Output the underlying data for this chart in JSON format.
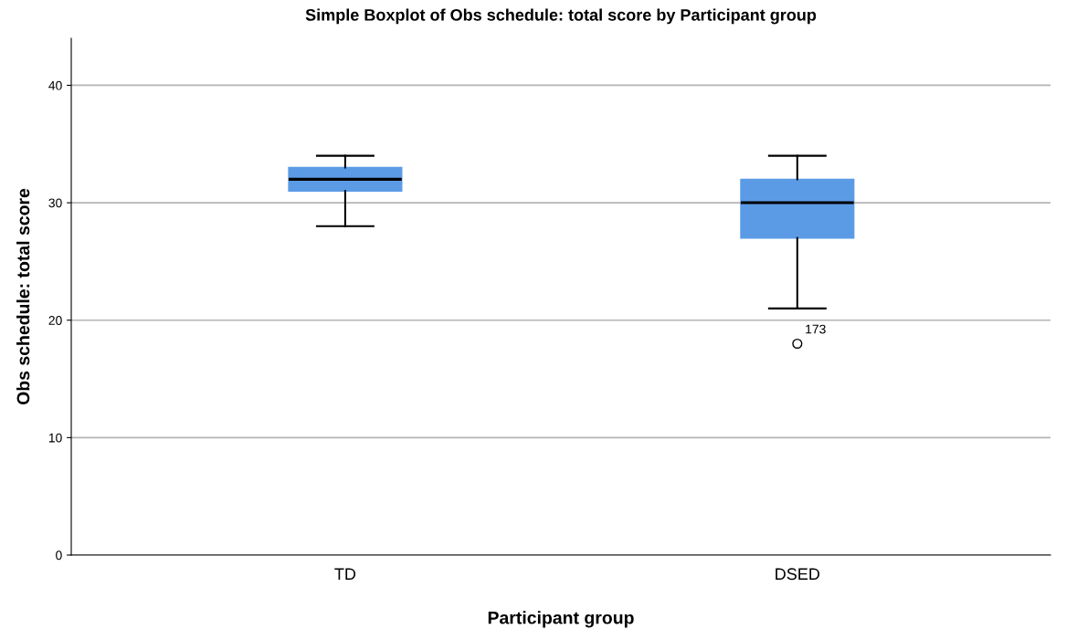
{
  "chart_data": {
    "type": "box",
    "title": "Simple Boxplot of Obs schedule: total score by Participant group",
    "xlabel": "Participant group",
    "ylabel": "Obs schedule: total score",
    "categories": [
      "TD",
      "DSED"
    ],
    "boxes": [
      {
        "low": 28,
        "q1": 31,
        "median": 32,
        "q3": 33,
        "high": 34
      },
      {
        "low": 21,
        "q1": 27,
        "median": 30,
        "q3": 32,
        "high": 34,
        "outliers": [
          18
        ]
      }
    ],
    "color": "#5b9be6",
    "ylim": [
      0,
      44
    ],
    "yticks": [
      0,
      10,
      20,
      30,
      40
    ],
    "grid": "y",
    "annotations": [
      "173"
    ]
  }
}
